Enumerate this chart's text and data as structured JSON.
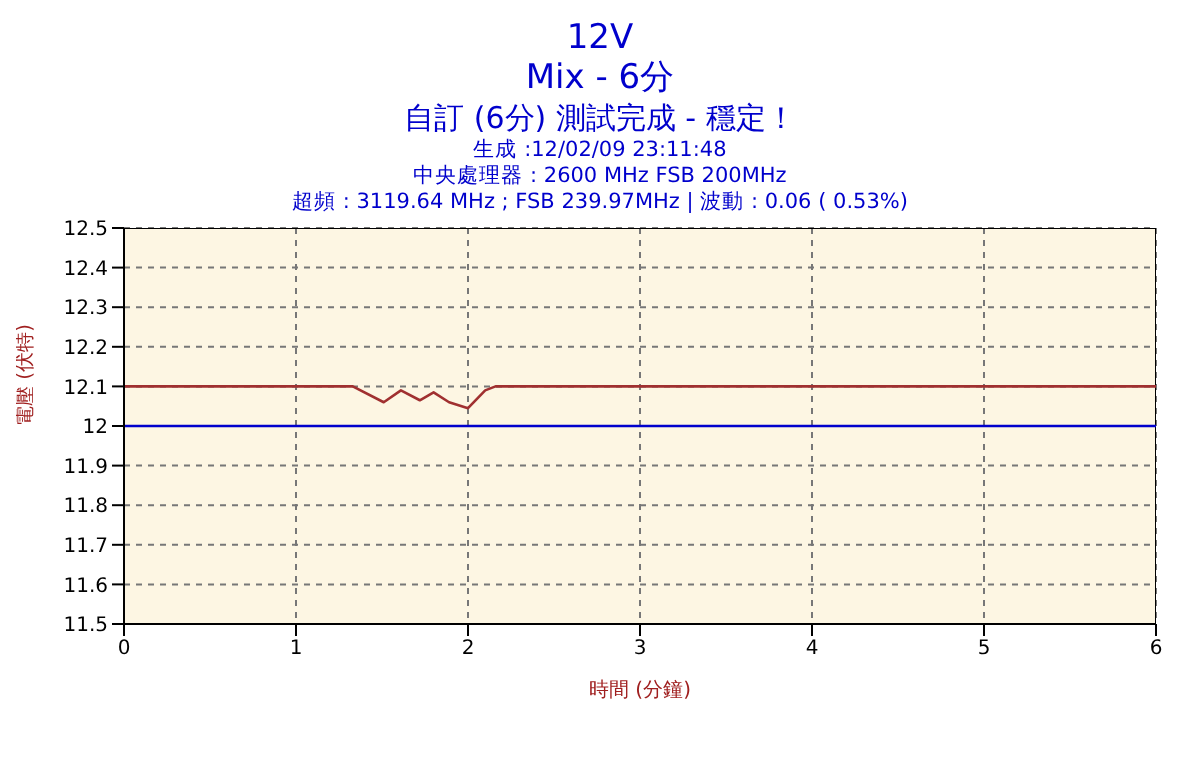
{
  "chart_data": {
    "type": "line",
    "title": "12V",
    "subtitle": "Mix - 6分",
    "annotations": [
      "自訂 (6分) 測試完成 - 穩定！",
      "生成 :12/02/09 23:11:48",
      "中央處理器 : 2600 MHz FSB 200MHz",
      "超頻 : 3119.64 MHz ; FSB 239.97MHz | 波動 : 0.06 ( 0.53%)"
    ],
    "xlabel": "時間 (分鐘)",
    "ylabel": "電壓 (伏特)",
    "series": [
      {
        "color": "#a03030",
        "x": [
          0,
          1.33,
          1.51,
          1.61,
          1.72,
          1.8,
          1.89,
          2.0,
          2.1,
          2.16,
          6
        ],
        "values": [
          12.1,
          12.1,
          12.06,
          12.09,
          12.065,
          12.085,
          12.06,
          12.045,
          12.09,
          12.1,
          12.1
        ]
      }
    ],
    "ref_lines": [
      {
        "axis": "y",
        "value": 12,
        "color": "#0000cc"
      }
    ],
    "xlim": [
      0,
      6
    ],
    "xticks": [
      0,
      1,
      2,
      3,
      4,
      5,
      6
    ],
    "ylim": [
      11.5,
      12.5
    ],
    "yticks": [
      11.5,
      11.6,
      11.7,
      11.8,
      11.9,
      12,
      12.1,
      12.2,
      12.3,
      12.4,
      12.5
    ],
    "grid": true,
    "line_style": "solid",
    "marker": "none",
    "legend": false
  }
}
